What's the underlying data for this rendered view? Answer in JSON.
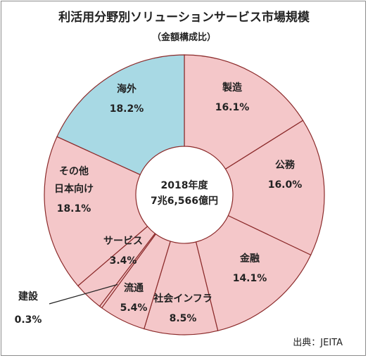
{
  "chart_data": {
    "type": "pie",
    "style": "donut",
    "title": "利活用分野別ソリューションサービス市場規模",
    "subtitle": "（金額構成比）",
    "center_label": [
      "2018年度",
      "7兆6,566億円"
    ],
    "source": "出典：JEITA",
    "slices": [
      {
        "label": "製造",
        "value": 16.1,
        "value_text": "16.1%",
        "color": "#f4c7c9"
      },
      {
        "label": "公務",
        "value": 16.0,
        "value_text": "16.0%",
        "color": "#f4c7c9"
      },
      {
        "label": "金融",
        "value": 14.1,
        "value_text": "14.1%",
        "color": "#f4c7c9"
      },
      {
        "label": "社会インフラ",
        "value": 8.5,
        "value_text": "8.5%",
        "color": "#f4c7c9"
      },
      {
        "label": "流通",
        "value": 5.4,
        "value_text": "5.4%",
        "color": "#f4c7c9"
      },
      {
        "label": "建設",
        "value": 0.3,
        "value_text": "0.3%",
        "color": "#f4c7c9"
      },
      {
        "label": "サービス",
        "value": 3.4,
        "value_text": "3.4%",
        "color": "#f4c7c9"
      },
      {
        "label": "その他\n日本向け",
        "value": 18.1,
        "value_text": "18.1%",
        "color": "#f4c7c9"
      },
      {
        "label": "海外",
        "value": 18.2,
        "value_text": "18.2%",
        "color": "#a8d9e4"
      }
    ],
    "slice_edge_color": "#8b2a2a"
  }
}
